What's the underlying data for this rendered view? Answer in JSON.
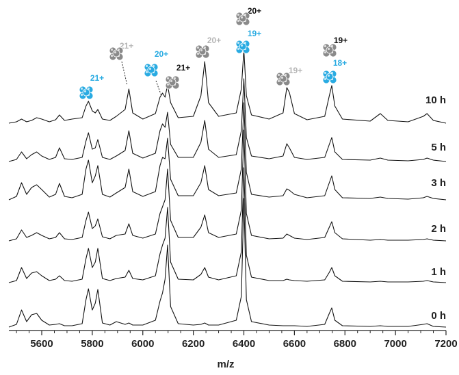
{
  "chart_data": {
    "type": "line",
    "x_label": "m/z",
    "x": [
      5470,
      5500,
      5520,
      5540,
      5560,
      5580,
      5600,
      5630,
      5655,
      5670,
      5690,
      5720,
      5760,
      5775,
      5785,
      5800,
      5812,
      5822,
      5840,
      5870,
      5895,
      5930,
      5945,
      5960,
      6000,
      6050,
      6068,
      6078,
      6088,
      6098,
      6110,
      6140,
      6200,
      6230,
      6245,
      6260,
      6300,
      6370,
      6390,
      6400,
      6410,
      6430,
      6500,
      6555,
      6570,
      6580,
      6600,
      6650,
      6720,
      6738,
      6748,
      6760,
      6790,
      6900,
      6940,
      6970,
      7050,
      7110,
      7125,
      7150,
      7200
    ],
    "series": [
      {
        "name": "10 h",
        "color": "#111111",
        "values": [
          0,
          2,
          6,
          2,
          4,
          8,
          6,
          2,
          5,
          12,
          4,
          6,
          8,
          25,
          32,
          18,
          15,
          20,
          6,
          4,
          10,
          20,
          50,
          15,
          6,
          14,
          38,
          44,
          38,
          56,
          30,
          8,
          10,
          40,
          90,
          30,
          10,
          15,
          50,
          107,
          40,
          12,
          6,
          15,
          52,
          45,
          14,
          5,
          10,
          40,
          55,
          25,
          6,
          3,
          14,
          4,
          2,
          10,
          14,
          4,
          0
        ]
      },
      {
        "name": "5 h",
        "color": "#111111",
        "values": [
          0,
          3,
          14,
          4,
          10,
          14,
          8,
          3,
          6,
          20,
          4,
          3,
          6,
          30,
          42,
          18,
          20,
          32,
          6,
          3,
          8,
          16,
          45,
          12,
          5,
          12,
          45,
          55,
          50,
          72,
          25,
          6,
          6,
          28,
          60,
          18,
          6,
          10,
          45,
          121,
          35,
          8,
          4,
          8,
          26,
          20,
          6,
          3,
          6,
          25,
          35,
          14,
          3,
          2,
          5,
          2,
          1,
          3,
          5,
          2,
          0
        ]
      },
      {
        "name": "3 h",
        "color": "#111111",
        "values": [
          0,
          5,
          25,
          8,
          18,
          22,
          15,
          4,
          8,
          24,
          5,
          3,
          8,
          45,
          58,
          25,
          35,
          50,
          8,
          4,
          10,
          18,
          45,
          12,
          5,
          12,
          50,
          62,
          60,
          90,
          30,
          6,
          6,
          25,
          50,
          15,
          6,
          10,
          45,
          142,
          40,
          8,
          4,
          6,
          16,
          14,
          8,
          3,
          6,
          25,
          35,
          15,
          3,
          2,
          4,
          2,
          1,
          3,
          5,
          2,
          0
        ]
      },
      {
        "name": "2 h",
        "color": "#111111",
        "values": [
          0,
          3,
          16,
          5,
          8,
          12,
          8,
          3,
          5,
          12,
          3,
          2,
          5,
          30,
          42,
          18,
          22,
          32,
          6,
          3,
          8,
          10,
          25,
          8,
          4,
          10,
          40,
          50,
          60,
          105,
          30,
          5,
          5,
          20,
          38,
          12,
          5,
          10,
          45,
          162,
          40,
          8,
          3,
          4,
          10,
          8,
          4,
          2,
          5,
          20,
          28,
          12,
          3,
          1,
          2,
          1,
          1,
          2,
          3,
          1,
          0
        ]
      },
      {
        "name": "1 h",
        "color": "#111111",
        "values": [
          0,
          3,
          22,
          6,
          14,
          16,
          10,
          3,
          5,
          10,
          3,
          2,
          5,
          35,
          50,
          22,
          30,
          50,
          6,
          3,
          6,
          8,
          18,
          6,
          4,
          10,
          42,
          55,
          65,
          110,
          30,
          5,
          4,
          12,
          22,
          8,
          4,
          10,
          45,
          168,
          40,
          8,
          3,
          3,
          5,
          4,
          3,
          2,
          4,
          15,
          22,
          10,
          2,
          1,
          2,
          1,
          1,
          2,
          3,
          1,
          0
        ]
      },
      {
        "name": "0 h",
        "color": "#111111",
        "values": [
          0,
          4,
          25,
          8,
          18,
          20,
          10,
          3,
          4,
          5,
          2,
          2,
          5,
          40,
          56,
          25,
          35,
          55,
          6,
          3,
          8,
          4,
          6,
          3,
          3,
          10,
          38,
          50,
          70,
          120,
          30,
          5,
          3,
          4,
          6,
          3,
          3,
          10,
          45,
          188,
          40,
          8,
          3,
          2,
          2,
          2,
          2,
          1,
          4,
          20,
          28,
          10,
          2,
          1,
          2,
          1,
          1,
          4,
          5,
          1,
          0
        ]
      }
    ],
    "xlim": [
      5470,
      7200
    ],
    "xticks": [
      5600,
      5800,
      6000,
      6200,
      6400,
      6600,
      6800,
      7000,
      7200
    ],
    "x_minor_ticks": [
      5500,
      5550,
      5650,
      5700,
      5750,
      5850,
      5900,
      5950,
      6050,
      6100,
      6150,
      6250,
      6300,
      6350,
      6450,
      6500,
      6550,
      6650,
      6700,
      6750,
      6850,
      6900,
      6950,
      7050,
      7100,
      7150
    ],
    "annotations": [
      {
        "text": "21+",
        "color": "#29abe2",
        "icon_color": "#29abe2",
        "x": 5785
      },
      {
        "text": "21+",
        "color": "#b5b5b5",
        "icon_color": "#8a8a8a",
        "x": 5945
      },
      {
        "text": "20+",
        "color": "#29abe2",
        "icon_color": "#29abe2",
        "x": 6078
      },
      {
        "text": "21+",
        "color": "#111111",
        "icon_color": "#8a8a8a",
        "x": 6098
      },
      {
        "text": "20+",
        "color": "#b5b5b5",
        "icon_color": "#8a8a8a",
        "x": 6245
      },
      {
        "text": "20+",
        "color": "#111111",
        "icon_color": "#8a8a8a",
        "x": 6400
      },
      {
        "text": "19+",
        "color": "#29abe2",
        "icon_color": "#29abe2",
        "x": 6400
      },
      {
        "text": "19+",
        "color": "#b5b5b5",
        "icon_color": "#8a8a8a",
        "x": 6575
      },
      {
        "text": "19+",
        "color": "#111111",
        "icon_color": "#8a8a8a",
        "x": 6745
      },
      {
        "text": "18+",
        "color": "#29abe2",
        "icon_color": "#29abe2",
        "x": 6745
      }
    ]
  }
}
